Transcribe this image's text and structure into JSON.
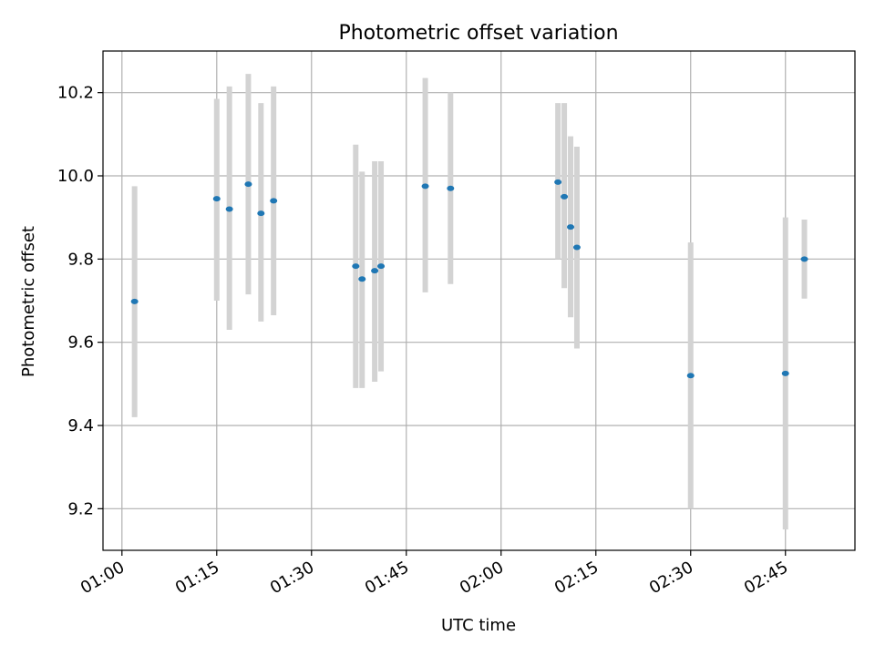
{
  "chart_data": {
    "type": "scatter",
    "title": "Photometric offset variation",
    "xlabel": "UTC time",
    "ylabel": "Photometric offset",
    "x_axis_kind": "time",
    "xlim": [
      "00:57",
      "02:56"
    ],
    "ylim": [
      9.1,
      10.3
    ],
    "x_ticks": [
      "01:00",
      "01:15",
      "01:30",
      "01:45",
      "02:00",
      "02:15",
      "02:30",
      "02:45"
    ],
    "y_ticks": [
      9.2,
      9.4,
      9.6,
      9.8,
      10.0,
      10.2
    ],
    "grid": true,
    "colors": {
      "marker": "#1f77b4",
      "errorbar": "#d3d3d3",
      "grid": "#b0b0b0"
    },
    "series": [
      {
        "points": [
          {
            "x": "01:02",
            "y": 9.698,
            "low": 9.42,
            "high": 9.975
          },
          {
            "x": "01:15",
            "y": 9.945,
            "low": 9.7,
            "high": 10.185
          },
          {
            "x": "01:17",
            "y": 9.92,
            "low": 9.63,
            "high": 10.215
          },
          {
            "x": "01:20",
            "y": 9.98,
            "low": 9.715,
            "high": 10.245
          },
          {
            "x": "01:22",
            "y": 9.91,
            "low": 9.65,
            "high": 10.175
          },
          {
            "x": "01:24",
            "y": 9.94,
            "low": 9.665,
            "high": 10.215
          },
          {
            "x": "01:37",
            "y": 9.783,
            "low": 9.49,
            "high": 10.075
          },
          {
            "x": "01:38",
            "y": 9.752,
            "low": 9.49,
            "high": 10.01
          },
          {
            "x": "01:40",
            "y": 9.772,
            "low": 9.505,
            "high": 10.035
          },
          {
            "x": "01:41",
            "y": 9.783,
            "low": 9.53,
            "high": 10.035
          },
          {
            "x": "01:48",
            "y": 9.975,
            "low": 9.72,
            "high": 10.235
          },
          {
            "x": "01:52",
            "y": 9.97,
            "low": 9.74,
            "high": 10.2
          },
          {
            "x": "02:09",
            "y": 9.985,
            "low": 9.8,
            "high": 10.175
          },
          {
            "x": "02:10",
            "y": 9.95,
            "low": 9.73,
            "high": 10.175
          },
          {
            "x": "02:11",
            "y": 9.877,
            "low": 9.66,
            "high": 10.095
          },
          {
            "x": "02:12",
            "y": 9.828,
            "low": 9.585,
            "high": 10.07
          },
          {
            "x": "02:30",
            "y": 9.52,
            "low": 9.2,
            "high": 9.84
          },
          {
            "x": "02:45",
            "y": 9.525,
            "low": 9.15,
            "high": 9.9
          },
          {
            "x": "02:48",
            "y": 9.8,
            "low": 9.705,
            "high": 9.895
          }
        ]
      }
    ]
  }
}
